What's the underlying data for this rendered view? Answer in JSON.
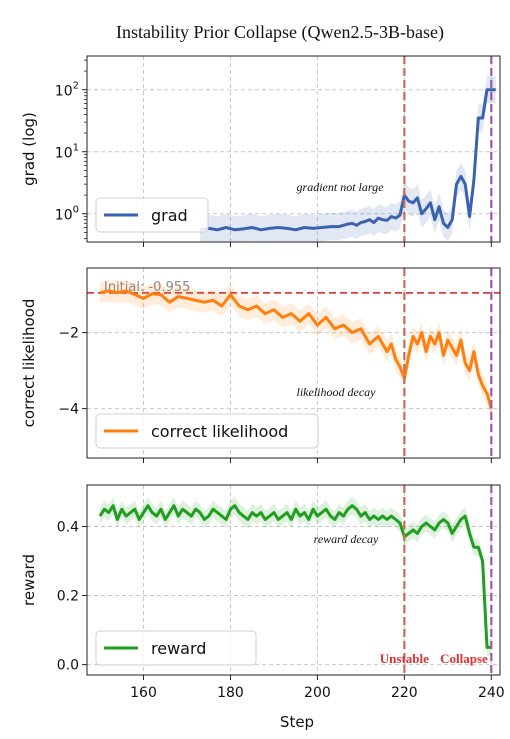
{
  "title": "Instability Prior Collapse (Qwen2.5-3B-base)",
  "colors": {
    "grad": "#3a62ae",
    "likelihood": "#ff7f0e",
    "reward": "#1f9e1f",
    "initial_line": "#e03b3b",
    "unstable_line": "#c96a5a",
    "collapse_line": "#9b5aa8",
    "marker_text": "#e03030"
  },
  "markers": {
    "unstable": {
      "x": 220,
      "label": "Unstable"
    },
    "collapse": {
      "x": 240,
      "label": "Collapse"
    }
  },
  "chart_data": [
    {
      "type": "line",
      "title": "",
      "xlabel": "",
      "ylabel": "grad (log)",
      "yscale": "log",
      "xlim": [
        147,
        242
      ],
      "ylim": [
        0.35,
        350
      ],
      "yticks": [
        1,
        10,
        100
      ],
      "ytick_labels": [
        "10^0",
        "10^1",
        "10^2"
      ],
      "grid": true,
      "legend": "lower-left",
      "annotation": "gradient not large",
      "series": [
        {
          "name": "grad",
          "x": [
            173,
            175,
            177,
            179,
            181,
            183,
            185,
            187,
            189,
            191,
            193,
            195,
            197,
            199,
            201,
            203,
            205,
            207,
            208,
            209,
            210,
            211,
            212,
            213,
            214,
            215,
            216,
            217,
            218,
            219,
            220,
            221,
            222,
            223,
            224,
            225,
            226,
            227,
            228,
            229,
            230,
            231,
            232,
            233,
            234,
            235,
            236,
            237,
            238,
            239,
            240,
            241
          ],
          "y": [
            0.55,
            0.58,
            0.55,
            0.6,
            0.55,
            0.57,
            0.6,
            0.55,
            0.58,
            0.6,
            0.58,
            0.55,
            0.6,
            0.58,
            0.6,
            0.62,
            0.62,
            0.68,
            0.7,
            0.65,
            0.72,
            0.75,
            0.8,
            0.72,
            0.85,
            0.8,
            0.78,
            0.9,
            0.85,
            0.95,
            2.0,
            1.6,
            1.5,
            1.8,
            1.0,
            1.2,
            1.5,
            0.8,
            1.3,
            0.7,
            0.6,
            0.8,
            3.0,
            4.0,
            3.0,
            0.9,
            3.5,
            35,
            35,
            100,
            100,
            100
          ]
        }
      ]
    },
    {
      "type": "line",
      "title": "",
      "xlabel": "",
      "ylabel": "correct likelihood",
      "xlim": [
        147,
        242
      ],
      "ylim": [
        -5.3,
        -0.3
      ],
      "yticks": [
        -2,
        -4
      ],
      "grid": true,
      "legend": "lower-left",
      "annotation": "likelihood decay",
      "reference_line": {
        "y": -0.955,
        "label": "Initial: -0.955"
      },
      "series": [
        {
          "name": "correct likelihood",
          "x": [
            150,
            152,
            154,
            156,
            158,
            160,
            162,
            164,
            166,
            168,
            170,
            172,
            174,
            176,
            178,
            180,
            182,
            184,
            186,
            188,
            190,
            192,
            194,
            196,
            198,
            200,
            202,
            204,
            206,
            208,
            210,
            212,
            214,
            216,
            217,
            218,
            219,
            220,
            221,
            222,
            223,
            224,
            225,
            226,
            227,
            228,
            229,
            230,
            231,
            232,
            233,
            234,
            235,
            236,
            237,
            238,
            239,
            240
          ],
          "y": [
            -0.95,
            -0.9,
            -0.95,
            -0.9,
            -1.0,
            -1.1,
            -0.98,
            -1.0,
            -1.2,
            -1.05,
            -1.1,
            -1.15,
            -1.2,
            -1.15,
            -1.3,
            -1.0,
            -1.3,
            -1.4,
            -1.3,
            -1.5,
            -1.4,
            -1.6,
            -1.5,
            -1.7,
            -1.5,
            -1.8,
            -1.6,
            -1.9,
            -1.8,
            -2.0,
            -1.9,
            -2.3,
            -2.1,
            -2.5,
            -2.3,
            -2.7,
            -2.9,
            -3.2,
            -2.6,
            -2.1,
            -2.3,
            -2.0,
            -2.5,
            -2.1,
            -2.3,
            -2.0,
            -2.6,
            -2.2,
            -2.4,
            -2.6,
            -2.2,
            -2.8,
            -3.0,
            -2.5,
            -3.1,
            -3.4,
            -3.6,
            -4.0
          ]
        }
      ]
    },
    {
      "type": "line",
      "title": "",
      "xlabel": "Step",
      "ylabel": "reward",
      "xlim": [
        147,
        242
      ],
      "ylim": [
        -0.03,
        0.52
      ],
      "yticks": [
        0.0,
        0.2,
        0.4
      ],
      "xticks": [
        160,
        180,
        200,
        220,
        240
      ],
      "grid": true,
      "legend": "lower-left",
      "annotation": "reward decay",
      "series": [
        {
          "name": "reward",
          "x": [
            150,
            151,
            152,
            153,
            154,
            155,
            156,
            157,
            158,
            159,
            160,
            161,
            162,
            163,
            164,
            165,
            166,
            167,
            168,
            169,
            170,
            171,
            172,
            173,
            174,
            175,
            176,
            177,
            178,
            179,
            180,
            181,
            182,
            183,
            184,
            185,
            186,
            187,
            188,
            189,
            190,
            191,
            192,
            193,
            194,
            195,
            196,
            197,
            198,
            199,
            200,
            201,
            202,
            203,
            204,
            205,
            206,
            207,
            208,
            209,
            210,
            211,
            212,
            213,
            214,
            215,
            216,
            217,
            218,
            219,
            220,
            221,
            222,
            223,
            224,
            225,
            226,
            227,
            228,
            229,
            230,
            231,
            232,
            233,
            234,
            235,
            236,
            237,
            238,
            239,
            240
          ],
          "y": [
            0.43,
            0.45,
            0.44,
            0.46,
            0.42,
            0.45,
            0.43,
            0.44,
            0.45,
            0.42,
            0.44,
            0.46,
            0.44,
            0.43,
            0.45,
            0.42,
            0.44,
            0.46,
            0.43,
            0.45,
            0.44,
            0.43,
            0.45,
            0.44,
            0.42,
            0.43,
            0.45,
            0.44,
            0.43,
            0.42,
            0.45,
            0.46,
            0.44,
            0.43,
            0.42,
            0.44,
            0.43,
            0.44,
            0.42,
            0.43,
            0.44,
            0.42,
            0.43,
            0.44,
            0.42,
            0.45,
            0.43,
            0.44,
            0.42,
            0.45,
            0.43,
            0.44,
            0.45,
            0.43,
            0.42,
            0.44,
            0.43,
            0.45,
            0.46,
            0.45,
            0.43,
            0.44,
            0.42,
            0.43,
            0.42,
            0.43,
            0.42,
            0.43,
            0.42,
            0.41,
            0.37,
            0.38,
            0.39,
            0.38,
            0.4,
            0.41,
            0.4,
            0.39,
            0.41,
            0.42,
            0.41,
            0.38,
            0.4,
            0.42,
            0.43,
            0.38,
            0.34,
            0.34,
            0.3,
            0.05,
            0.05
          ]
        }
      ]
    }
  ]
}
